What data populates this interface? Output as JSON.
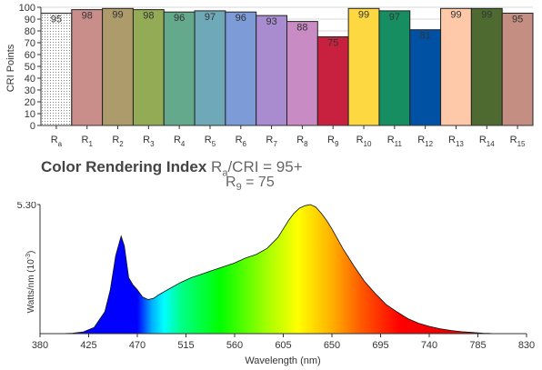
{
  "cri_chart": {
    "type": "bar",
    "ylabel": "CRI Points",
    "ylim": [
      0,
      100
    ],
    "yticks": [
      0,
      10,
      20,
      30,
      40,
      50,
      60,
      70,
      80,
      90,
      100
    ],
    "categories": [
      {
        "base": "R",
        "sub": "a"
      },
      {
        "base": "R",
        "sub": "1"
      },
      {
        "base": "R",
        "sub": "2"
      },
      {
        "base": "R",
        "sub": "3"
      },
      {
        "base": "R",
        "sub": "4"
      },
      {
        "base": "R",
        "sub": "5"
      },
      {
        "base": "R",
        "sub": "6"
      },
      {
        "base": "R",
        "sub": "7"
      },
      {
        "base": "R",
        "sub": "8"
      },
      {
        "base": "R",
        "sub": "9"
      },
      {
        "base": "R",
        "sub": "10"
      },
      {
        "base": "R",
        "sub": "11"
      },
      {
        "base": "R",
        "sub": "12"
      },
      {
        "base": "R",
        "sub": "13"
      },
      {
        "base": "R",
        "sub": "14"
      },
      {
        "base": "R",
        "sub": "15"
      }
    ],
    "values": [
      95,
      98,
      99,
      98,
      96,
      97,
      96,
      93,
      88,
      75,
      99,
      97,
      81,
      99,
      99,
      95
    ],
    "colors": [
      "#ffffff",
      "#c98d8a",
      "#ad9b6c",
      "#93ab55",
      "#64a98c",
      "#6fa9b8",
      "#7d9bd7",
      "#a98bd0",
      "#c98bc4",
      "#c8213f",
      "#fdd840",
      "#178e62",
      "#0051a3",
      "#fdc9a8",
      "#4e6a30",
      "#c48e82"
    ]
  },
  "title": {
    "main": "Color Rendering Index",
    "ra_base": "R",
    "ra_sub": "a",
    "ra_rest": "/CRI = 95+",
    "r9_base": "R",
    "r9_sub": "9",
    "r9_rest": " = 75"
  },
  "chart_data": {
    "type": "area",
    "xlabel": "Wavelength (nm)",
    "ylabel_base": "Watts/nm (10",
    "ylabel_exp": "-3",
    "ylabel_end": ")",
    "ymax_label": "5.30",
    "ylim": [
      0,
      5.3
    ],
    "xlim": [
      380,
      830
    ],
    "xticks": [
      380,
      425,
      470,
      515,
      560,
      605,
      650,
      695,
      740,
      785,
      830
    ],
    "x": [
      380,
      400,
      410,
      420,
      430,
      440,
      445,
      450,
      455,
      458,
      462,
      466,
      470,
      475,
      480,
      485,
      490,
      500,
      510,
      520,
      530,
      540,
      550,
      560,
      570,
      580,
      590,
      600,
      605,
      610,
      615,
      620,
      625,
      630,
      635,
      640,
      645,
      650,
      660,
      670,
      680,
      690,
      700,
      710,
      720,
      730,
      740,
      750,
      760,
      770,
      780,
      790,
      795,
      800,
      830
    ],
    "y": [
      0,
      0,
      0.02,
      0.07,
      0.25,
      0.9,
      1.8,
      3.2,
      4.0,
      3.6,
      2.3,
      2.0,
      1.8,
      1.5,
      1.4,
      1.45,
      1.6,
      1.85,
      2.1,
      2.3,
      2.45,
      2.6,
      2.75,
      2.9,
      3.1,
      3.25,
      3.5,
      3.95,
      4.3,
      4.65,
      4.95,
      5.15,
      5.25,
      5.3,
      5.2,
      4.95,
      4.65,
      4.3,
      3.5,
      2.8,
      2.15,
      1.65,
      1.2,
      0.9,
      0.62,
      0.43,
      0.3,
      0.2,
      0.13,
      0.08,
      0.05,
      0.02,
      0.01,
      0,
      0
    ]
  }
}
